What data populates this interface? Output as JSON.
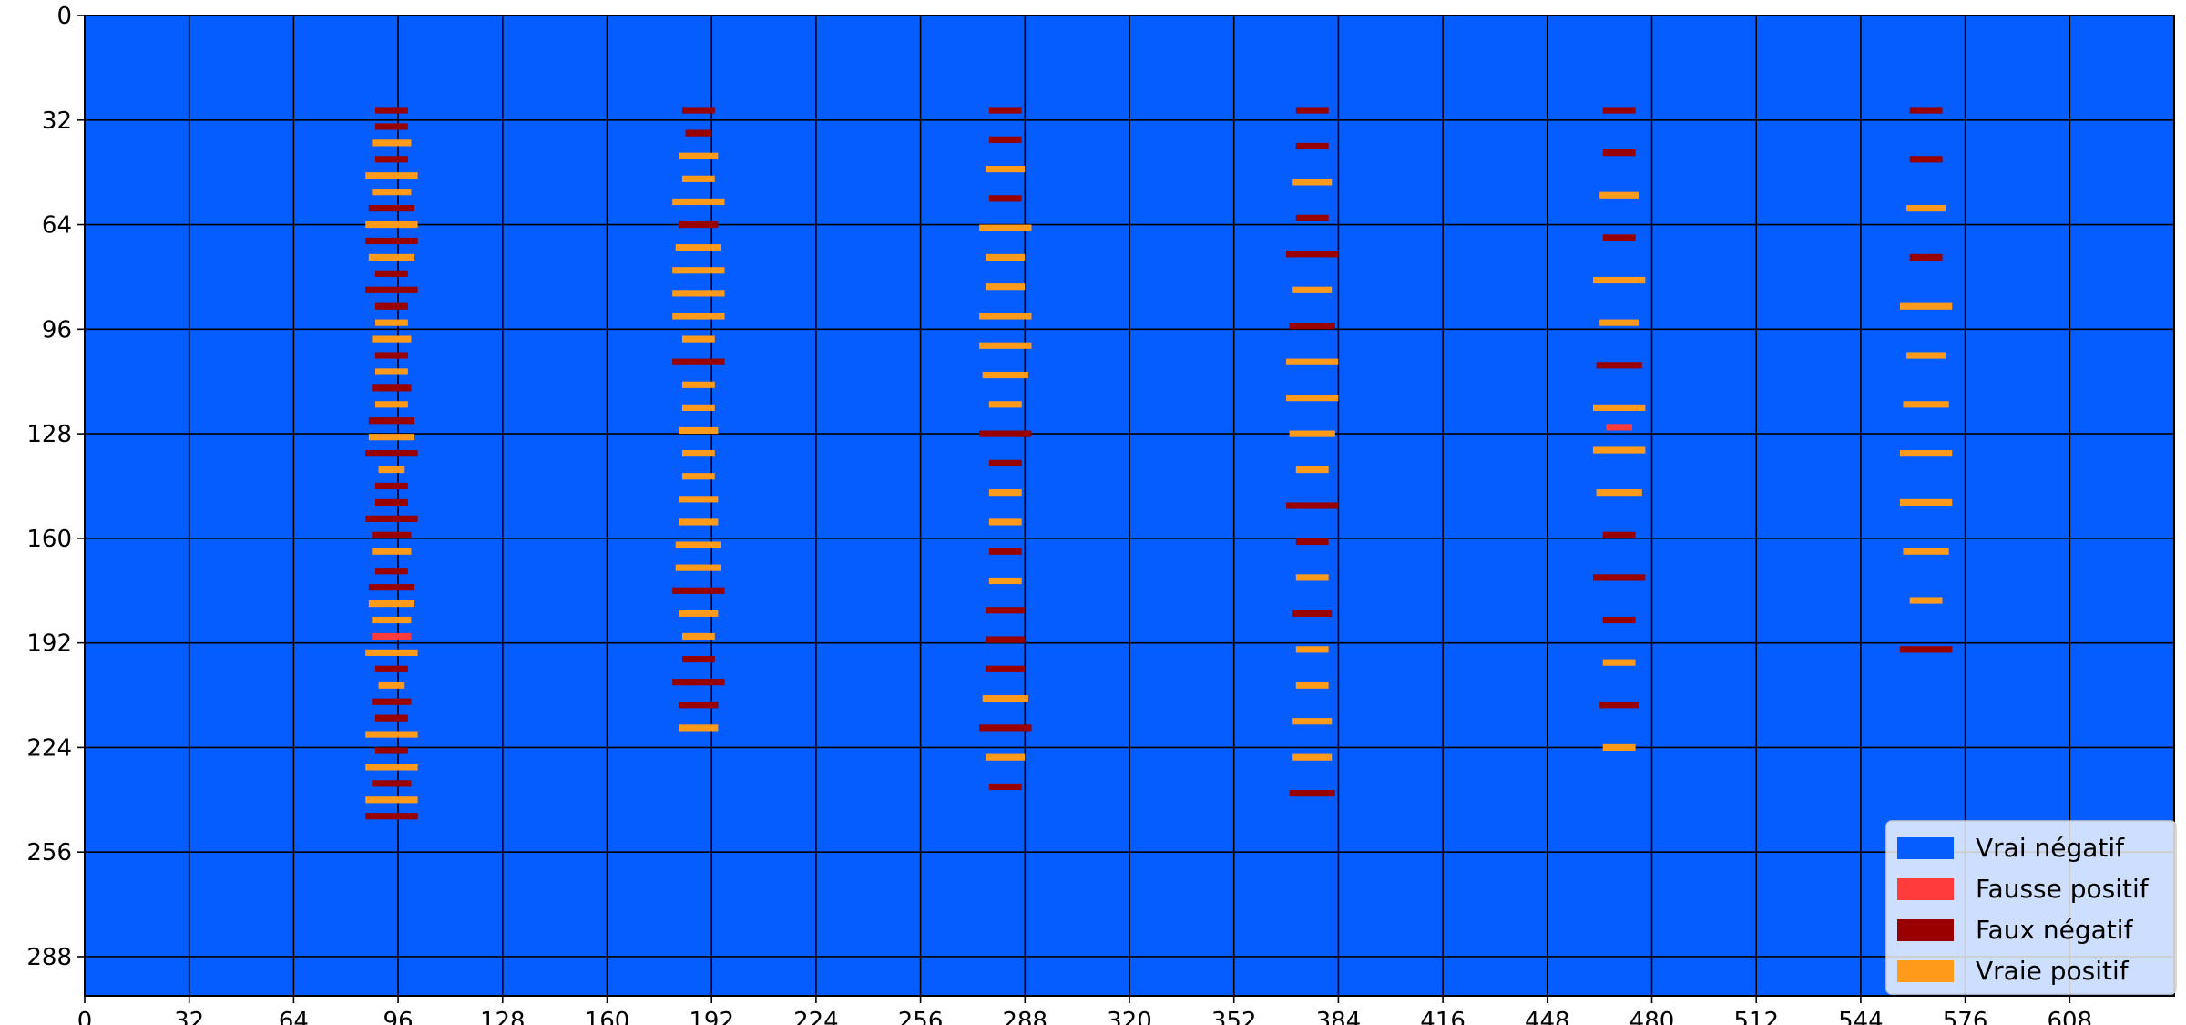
{
  "chart_data": {
    "type": "heatmap",
    "title": "",
    "xlabel": "",
    "ylabel": "",
    "xlim": [
      0,
      640
    ],
    "ylim": [
      300,
      0
    ],
    "x_ticks": [
      "0",
      "32",
      "64",
      "96",
      "128",
      "160",
      "192",
      "224",
      "256",
      "288",
      "320",
      "352",
      "384",
      "416",
      "448",
      "480",
      "512",
      "544",
      "576",
      "608"
    ],
    "y_ticks": [
      "0",
      "32",
      "64",
      "96",
      "128",
      "160",
      "192",
      "224",
      "256",
      "288"
    ],
    "grid": true,
    "legend_position": "lower-right",
    "classes": [
      {
        "name": "Vrai négatif",
        "color": "#055cff"
      },
      {
        "name": "Fausse positif",
        "color": "#ff3b3b"
      },
      {
        "name": "Faux négatif",
        "color": "#990000"
      },
      {
        "name": "Vraie positif",
        "color": "#ff9a1a"
      }
    ],
    "columns": [
      {
        "center": 94,
        "rows": [
          {
            "y": 29,
            "w": 10,
            "c": "fn"
          },
          {
            "y": 34,
            "w": 10,
            "c": "fn"
          },
          {
            "y": 39,
            "w": 12,
            "c": "tp"
          },
          {
            "y": 44,
            "w": 10,
            "c": "fn"
          },
          {
            "y": 49,
            "w": 16,
            "c": "tp"
          },
          {
            "y": 54,
            "w": 12,
            "c": "tp"
          },
          {
            "y": 59,
            "w": 14,
            "c": "fn"
          },
          {
            "y": 64,
            "w": 16,
            "c": "tp"
          },
          {
            "y": 69,
            "w": 16,
            "c": "fn"
          },
          {
            "y": 74,
            "w": 14,
            "c": "tp"
          },
          {
            "y": 79,
            "w": 10,
            "c": "fn"
          },
          {
            "y": 84,
            "w": 16,
            "c": "fn"
          },
          {
            "y": 89,
            "w": 10,
            "c": "fn"
          },
          {
            "y": 94,
            "w": 10,
            "c": "tp"
          },
          {
            "y": 99,
            "w": 12,
            "c": "tp"
          },
          {
            "y": 104,
            "w": 10,
            "c": "fn"
          },
          {
            "y": 109,
            "w": 10,
            "c": "tp"
          },
          {
            "y": 114,
            "w": 12,
            "c": "fn"
          },
          {
            "y": 119,
            "w": 10,
            "c": "tp"
          },
          {
            "y": 124,
            "w": 14,
            "c": "fn"
          },
          {
            "y": 129,
            "w": 14,
            "c": "tp"
          },
          {
            "y": 134,
            "w": 16,
            "c": "fn"
          },
          {
            "y": 139,
            "w": 8,
            "c": "tp"
          },
          {
            "y": 144,
            "w": 10,
            "c": "fn"
          },
          {
            "y": 149,
            "w": 10,
            "c": "fn"
          },
          {
            "y": 154,
            "w": 16,
            "c": "fn"
          },
          {
            "y": 159,
            "w": 12,
            "c": "fn"
          },
          {
            "y": 164,
            "w": 12,
            "c": "tp"
          },
          {
            "y": 170,
            "w": 10,
            "c": "fn"
          },
          {
            "y": 175,
            "w": 14,
            "c": "fn"
          },
          {
            "y": 180,
            "w": 14,
            "c": "tp"
          },
          {
            "y": 185,
            "w": 12,
            "c": "tp"
          },
          {
            "y": 190,
            "w": 12,
            "c": "fp"
          },
          {
            "y": 195,
            "w": 16,
            "c": "tp"
          },
          {
            "y": 200,
            "w": 10,
            "c": "fn"
          },
          {
            "y": 205,
            "w": 8,
            "c": "tp"
          },
          {
            "y": 210,
            "w": 12,
            "c": "fn"
          },
          {
            "y": 215,
            "w": 10,
            "c": "fn"
          },
          {
            "y": 220,
            "w": 16,
            "c": "tp"
          },
          {
            "y": 225,
            "w": 10,
            "c": "fn"
          },
          {
            "y": 230,
            "w": 16,
            "c": "tp"
          },
          {
            "y": 235,
            "w": 12,
            "c": "fn"
          },
          {
            "y": 240,
            "w": 16,
            "c": "tp"
          },
          {
            "y": 245,
            "w": 16,
            "c": "fn"
          }
        ]
      },
      {
        "center": 188,
        "rows": [
          {
            "y": 29,
            "w": 10,
            "c": "fn"
          },
          {
            "y": 36,
            "w": 8,
            "c": "fn"
          },
          {
            "y": 43,
            "w": 12,
            "c": "tp"
          },
          {
            "y": 50,
            "w": 10,
            "c": "tp"
          },
          {
            "y": 57,
            "w": 16,
            "c": "tp"
          },
          {
            "y": 64,
            "w": 12,
            "c": "fn"
          },
          {
            "y": 71,
            "w": 14,
            "c": "tp"
          },
          {
            "y": 78,
            "w": 16,
            "c": "tp"
          },
          {
            "y": 85,
            "w": 16,
            "c": "tp"
          },
          {
            "y": 92,
            "w": 16,
            "c": "tp"
          },
          {
            "y": 99,
            "w": 10,
            "c": "tp"
          },
          {
            "y": 106,
            "w": 16,
            "c": "fn"
          },
          {
            "y": 113,
            "w": 10,
            "c": "tp"
          },
          {
            "y": 120,
            "w": 10,
            "c": "tp"
          },
          {
            "y": 127,
            "w": 12,
            "c": "tp"
          },
          {
            "y": 134,
            "w": 10,
            "c": "tp"
          },
          {
            "y": 141,
            "w": 10,
            "c": "tp"
          },
          {
            "y": 148,
            "w": 12,
            "c": "tp"
          },
          {
            "y": 155,
            "w": 12,
            "c": "tp"
          },
          {
            "y": 162,
            "w": 14,
            "c": "tp"
          },
          {
            "y": 169,
            "w": 14,
            "c": "tp"
          },
          {
            "y": 176,
            "w": 16,
            "c": "fn"
          },
          {
            "y": 183,
            "w": 12,
            "c": "tp"
          },
          {
            "y": 190,
            "w": 10,
            "c": "tp"
          },
          {
            "y": 197,
            "w": 10,
            "c": "fn"
          },
          {
            "y": 204,
            "w": 16,
            "c": "fn"
          },
          {
            "y": 211,
            "w": 12,
            "c": "fn"
          },
          {
            "y": 218,
            "w": 12,
            "c": "tp"
          }
        ]
      },
      {
        "center": 282,
        "rows": [
          {
            "y": 29,
            "w": 10,
            "c": "fn"
          },
          {
            "y": 38,
            "w": 10,
            "c": "fn"
          },
          {
            "y": 47,
            "w": 12,
            "c": "tp"
          },
          {
            "y": 56,
            "w": 10,
            "c": "fn"
          },
          {
            "y": 65,
            "w": 16,
            "c": "tp"
          },
          {
            "y": 74,
            "w": 12,
            "c": "tp"
          },
          {
            "y": 83,
            "w": 12,
            "c": "tp"
          },
          {
            "y": 92,
            "w": 16,
            "c": "tp"
          },
          {
            "y": 101,
            "w": 16,
            "c": "tp"
          },
          {
            "y": 110,
            "w": 14,
            "c": "tp"
          },
          {
            "y": 119,
            "w": 10,
            "c": "tp"
          },
          {
            "y": 128,
            "w": 16,
            "c": "fn"
          },
          {
            "y": 137,
            "w": 10,
            "c": "fn"
          },
          {
            "y": 146,
            "w": 10,
            "c": "tp"
          },
          {
            "y": 155,
            "w": 10,
            "c": "tp"
          },
          {
            "y": 164,
            "w": 10,
            "c": "fn"
          },
          {
            "y": 173,
            "w": 10,
            "c": "tp"
          },
          {
            "y": 182,
            "w": 12,
            "c": "fn"
          },
          {
            "y": 191,
            "w": 12,
            "c": "fn"
          },
          {
            "y": 200,
            "w": 12,
            "c": "fn"
          },
          {
            "y": 209,
            "w": 14,
            "c": "tp"
          },
          {
            "y": 218,
            "w": 16,
            "c": "fn"
          },
          {
            "y": 227,
            "w": 12,
            "c": "tp"
          },
          {
            "y": 236,
            "w": 10,
            "c": "fn"
          }
        ]
      },
      {
        "center": 376,
        "rows": [
          {
            "y": 29,
            "w": 10,
            "c": "fn"
          },
          {
            "y": 40,
            "w": 10,
            "c": "fn"
          },
          {
            "y": 51,
            "w": 12,
            "c": "tp"
          },
          {
            "y": 62,
            "w": 10,
            "c": "fn"
          },
          {
            "y": 73,
            "w": 16,
            "c": "fn"
          },
          {
            "y": 84,
            "w": 12,
            "c": "tp"
          },
          {
            "y": 95,
            "w": 14,
            "c": "fn"
          },
          {
            "y": 106,
            "w": 16,
            "c": "tp"
          },
          {
            "y": 117,
            "w": 16,
            "c": "tp"
          },
          {
            "y": 128,
            "w": 14,
            "c": "tp"
          },
          {
            "y": 139,
            "w": 10,
            "c": "tp"
          },
          {
            "y": 150,
            "w": 16,
            "c": "fn"
          },
          {
            "y": 161,
            "w": 10,
            "c": "fn"
          },
          {
            "y": 172,
            "w": 10,
            "c": "tp"
          },
          {
            "y": 183,
            "w": 12,
            "c": "fn"
          },
          {
            "y": 194,
            "w": 10,
            "c": "tp"
          },
          {
            "y": 205,
            "w": 10,
            "c": "tp"
          },
          {
            "y": 216,
            "w": 12,
            "c": "tp"
          },
          {
            "y": 227,
            "w": 12,
            "c": "tp"
          },
          {
            "y": 238,
            "w": 14,
            "c": "fn"
          }
        ]
      },
      {
        "center": 470,
        "rows": [
          {
            "y": 29,
            "w": 10,
            "c": "fn"
          },
          {
            "y": 42,
            "w": 10,
            "c": "fn"
          },
          {
            "y": 55,
            "w": 12,
            "c": "tp"
          },
          {
            "y": 68,
            "w": 10,
            "c": "fn"
          },
          {
            "y": 81,
            "w": 16,
            "c": "tp"
          },
          {
            "y": 94,
            "w": 12,
            "c": "tp"
          },
          {
            "y": 107,
            "w": 14,
            "c": "fn"
          },
          {
            "y": 120,
            "w": 16,
            "c": "tp"
          },
          {
            "y": 126,
            "w": 8,
            "c": "fp"
          },
          {
            "y": 133,
            "w": 16,
            "c": "tp"
          },
          {
            "y": 146,
            "w": 14,
            "c": "tp"
          },
          {
            "y": 159,
            "w": 10,
            "c": "fn"
          },
          {
            "y": 172,
            "w": 16,
            "c": "fn"
          },
          {
            "y": 185,
            "w": 10,
            "c": "fn"
          },
          {
            "y": 198,
            "w": 10,
            "c": "tp"
          },
          {
            "y": 211,
            "w": 12,
            "c": "fn"
          },
          {
            "y": 224,
            "w": 10,
            "c": "tp"
          }
        ]
      },
      {
        "center": 564,
        "rows": [
          {
            "y": 29,
            "w": 10,
            "c": "fn"
          },
          {
            "y": 44,
            "w": 10,
            "c": "fn"
          },
          {
            "y": 59,
            "w": 12,
            "c": "tp"
          },
          {
            "y": 74,
            "w": 10,
            "c": "fn"
          },
          {
            "y": 89,
            "w": 16,
            "c": "tp"
          },
          {
            "y": 104,
            "w": 12,
            "c": "tp"
          },
          {
            "y": 119,
            "w": 14,
            "c": "tp"
          },
          {
            "y": 134,
            "w": 16,
            "c": "tp"
          },
          {
            "y": 149,
            "w": 16,
            "c": "tp"
          },
          {
            "y": 164,
            "w": 14,
            "c": "tp"
          },
          {
            "y": 179,
            "w": 10,
            "c": "tp"
          },
          {
            "y": 194,
            "w": 16,
            "c": "fn"
          }
        ]
      }
    ]
  }
}
